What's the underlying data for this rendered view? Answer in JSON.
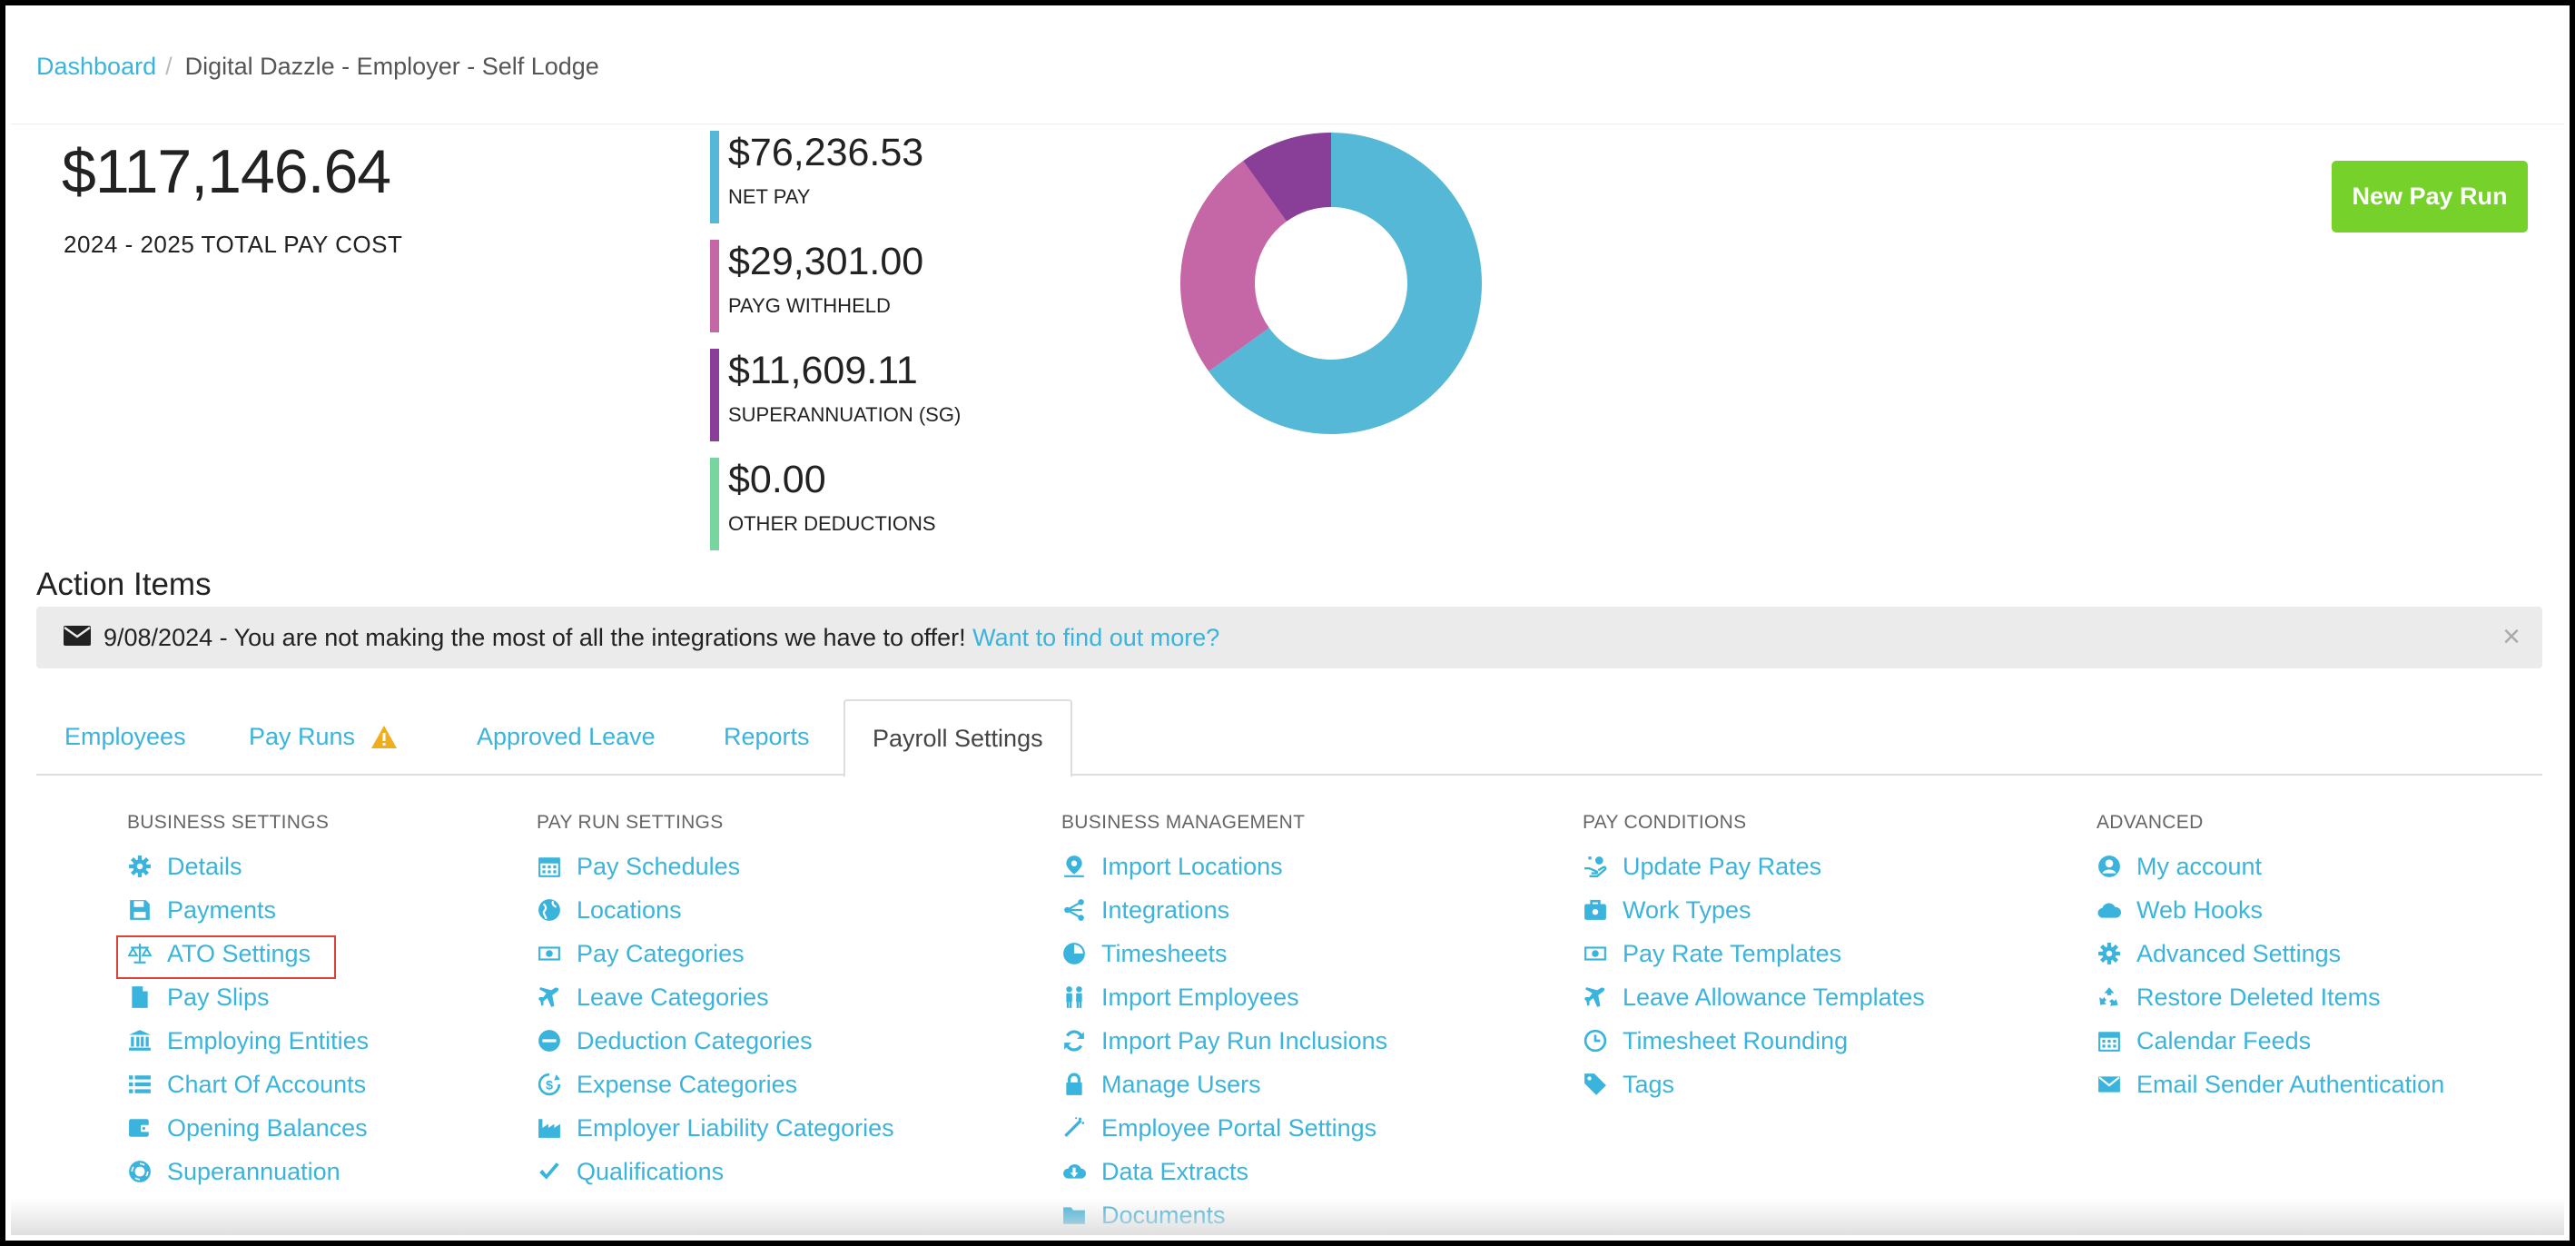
{
  "breadcrumb": {
    "home": "Dashboard",
    "current": "Digital Dazzle - Employer - Self Lodge"
  },
  "summary": {
    "total": "$117,146.64",
    "total_label": "2024 - 2025 TOTAL PAY COST"
  },
  "stats": [
    {
      "amount": "$76,236.53",
      "label": "NET PAY",
      "color": "#55b8d6"
    },
    {
      "amount": "$29,301.00",
      "label": "PAYG WITHHELD",
      "color": "#c566a6"
    },
    {
      "amount": "$11,609.11",
      "label": "SUPERANNUATION (SG)",
      "color": "#893e97"
    },
    {
      "amount": "$0.00",
      "label": "OTHER DEDUCTIONS",
      "color": "#77d6a0"
    }
  ],
  "donut": {
    "values": [
      76236.53,
      29301.0,
      11609.11,
      0.0
    ],
    "colors": [
      "#55b8d6",
      "#c566a6",
      "#893e97",
      "#77d6a0"
    ]
  },
  "new_pay_run": "New Pay Run",
  "action_items": {
    "title": "Action Items",
    "message": "9/08/2024 - You are not making the most of all the integrations we have to offer!",
    "link": "Want to find out more?",
    "close": "×"
  },
  "tabs": [
    "Employees",
    "Pay Runs",
    "Approved Leave",
    "Reports",
    "Payroll Settings"
  ],
  "settings": {
    "business": {
      "title": "BUSINESS SETTINGS",
      "items": [
        {
          "label": "Details",
          "icon": "gear"
        },
        {
          "label": "Payments",
          "icon": "save"
        },
        {
          "label": "ATO Settings",
          "icon": "scale"
        },
        {
          "label": "Pay Slips",
          "icon": "file"
        },
        {
          "label": "Employing Entities",
          "icon": "bank"
        },
        {
          "label": "Chart Of Accounts",
          "icon": "list"
        },
        {
          "label": "Opening Balances",
          "icon": "wallet"
        },
        {
          "label": "Superannuation",
          "icon": "lifering"
        }
      ]
    },
    "payrun": {
      "title": "PAY RUN SETTINGS",
      "items": [
        {
          "label": "Pay Schedules",
          "icon": "calendar"
        },
        {
          "label": "Locations",
          "icon": "globe"
        },
        {
          "label": "Pay Categories",
          "icon": "money"
        },
        {
          "label": "Leave Categories",
          "icon": "plane"
        },
        {
          "label": "Deduction Categories",
          "icon": "minus-circle"
        },
        {
          "label": "Expense Categories",
          "icon": "dollar-cycle"
        },
        {
          "label": "Employer Liability Categories",
          "icon": "industry"
        },
        {
          "label": "Qualifications",
          "icon": "check"
        }
      ]
    },
    "management": {
      "title": "BUSINESS MANAGEMENT",
      "items": [
        {
          "label": "Import Locations",
          "icon": "pin"
        },
        {
          "label": "Integrations",
          "icon": "share"
        },
        {
          "label": "Timesheets",
          "icon": "pie"
        },
        {
          "label": "Import Employees",
          "icon": "people"
        },
        {
          "label": "Import Pay Run Inclusions",
          "icon": "refresh"
        },
        {
          "label": "Manage Users",
          "icon": "lock"
        },
        {
          "label": "Employee Portal Settings",
          "icon": "wand"
        },
        {
          "label": "Data Extracts",
          "icon": "cloud-download"
        },
        {
          "label": "Documents",
          "icon": "folder"
        }
      ]
    },
    "conditions": {
      "title": "PAY CONDITIONS",
      "items": [
        {
          "label": "Update Pay Rates",
          "icon": "hand-money"
        },
        {
          "label": "Work Types",
          "icon": "briefcase"
        },
        {
          "label": "Pay Rate Templates",
          "icon": "money"
        },
        {
          "label": "Leave Allowance Templates",
          "icon": "plane"
        },
        {
          "label": "Timesheet Rounding",
          "icon": "clock"
        },
        {
          "label": "Tags",
          "icon": "tag"
        }
      ]
    },
    "advanced": {
      "title": "ADVANCED",
      "items": [
        {
          "label": "My account",
          "icon": "user-circle"
        },
        {
          "label": "Web Hooks",
          "icon": "cloud"
        },
        {
          "label": "Advanced Settings",
          "icon": "gear"
        },
        {
          "label": "Restore Deleted Items",
          "icon": "recycle"
        },
        {
          "label": "Calendar Feeds",
          "icon": "calendar"
        },
        {
          "label": "Email Sender Authentication",
          "icon": "envelope"
        }
      ]
    }
  }
}
